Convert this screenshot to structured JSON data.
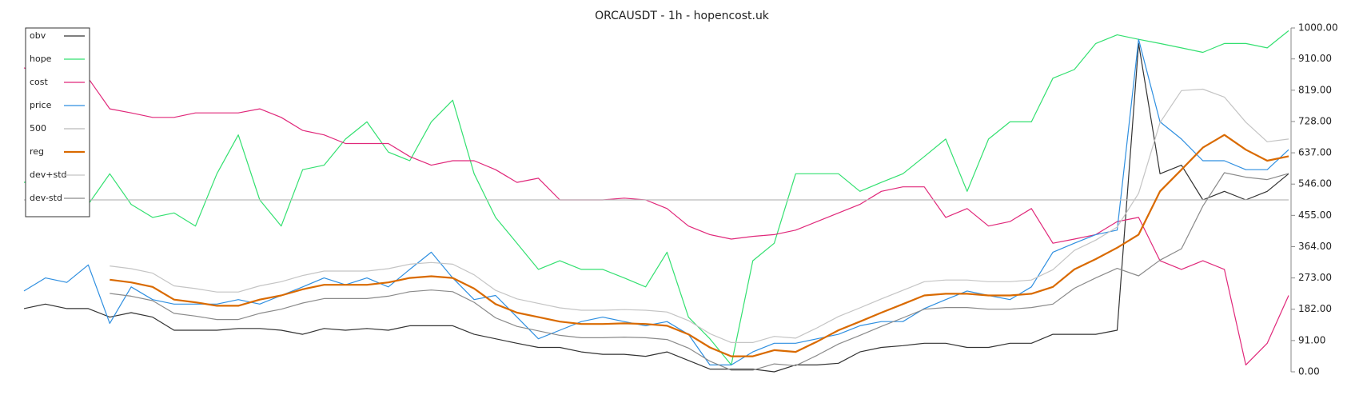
{
  "chart_data": {
    "type": "line",
    "title": "ORCAUSDT - 1h - hopencost.uk",
    "ylim": [
      0,
      1000
    ],
    "yticks": [
      {
        "value": 0,
        "label": "0.00"
      },
      {
        "value": 91,
        "label": "91.00"
      },
      {
        "value": 182,
        "label": "182.00"
      },
      {
        "value": 273,
        "label": "273.00"
      },
      {
        "value": 364,
        "label": "364.00"
      },
      {
        "value": 455,
        "label": "455.00"
      },
      {
        "value": 546,
        "label": "546.00"
      },
      {
        "value": 637,
        "label": "637.00"
      },
      {
        "value": 728,
        "label": "728.00"
      },
      {
        "value": 819,
        "label": "819.00"
      },
      {
        "value": 910,
        "label": "910.00"
      },
      {
        "value": 1000,
        "label": "1000.00"
      }
    ],
    "legend": "top-left",
    "series": [
      {
        "name": "obv",
        "color": "#333333",
        "width": 1.2,
        "values": [
          184,
          197,
          184,
          184,
          159,
          172,
          159,
          121,
          121,
          121,
          126,
          126,
          121,
          109,
          126,
          121,
          126,
          121,
          134,
          134,
          134,
          109,
          96,
          83,
          71,
          71,
          58,
          51,
          51,
          45,
          58,
          33,
          8,
          8,
          8,
          0,
          20,
          20,
          25,
          58,
          71,
          76,
          83,
          83,
          71,
          71,
          83,
          83,
          109,
          109,
          109,
          121,
          955,
          576,
          601,
          500,
          525,
          500,
          525,
          576
        ]
      },
      {
        "name": "hope",
        "color": "#33e070",
        "width": 1.2,
        "values": [
          551,
          563,
          525,
          487,
          576,
          487,
          449,
          462,
          424,
          576,
          689,
          500,
          424,
          588,
          601,
          677,
          727,
          639,
          614,
          727,
          790,
          576,
          449,
          374,
          298,
          323,
          298,
          298,
          273,
          247,
          348,
          159,
          96,
          20,
          323,
          374,
          576,
          576,
          576,
          525,
          551,
          576,
          626,
          677,
          525,
          677,
          727,
          727,
          854,
          879,
          955,
          980,
          967,
          955,
          942,
          929,
          955,
          955,
          942,
          992
        ]
      },
      {
        "name": "cost",
        "color": "#e0287a",
        "width": 1.2,
        "values": [
          884,
          866,
          854,
          854,
          765,
          753,
          740,
          740,
          753,
          753,
          753,
          765,
          740,
          702,
          689,
          664,
          664,
          664,
          626,
          601,
          614,
          614,
          588,
          551,
          563,
          500,
          500,
          500,
          505,
          500,
          475,
          424,
          399,
          386,
          394,
          399,
          412,
          437,
          462,
          487,
          525,
          538,
          538,
          449,
          475,
          424,
          437,
          475,
          374,
          386,
          399,
          437,
          449,
          323,
          298,
          323,
          298,
          20,
          83,
          222
        ]
      },
      {
        "name": "price",
        "color": "#2f8fe0",
        "width": 1.2,
        "values": [
          235,
          273,
          260,
          311,
          141,
          247,
          210,
          197,
          197,
          197,
          210,
          197,
          222,
          247,
          273,
          253,
          273,
          247,
          298,
          348,
          273,
          210,
          222,
          159,
          96,
          121,
          146,
          159,
          146,
          134,
          146,
          109,
          20,
          20,
          58,
          83,
          83,
          96,
          109,
          134,
          146,
          146,
          184,
          210,
          235,
          222,
          210,
          247,
          348,
          374,
          399,
          412,
          967,
          727,
          677,
          614,
          614,
          588,
          588,
          646
        ]
      },
      {
        "name": "500",
        "color": "#bbbbbb",
        "width": 1.2,
        "values": [
          500,
          500,
          500,
          500,
          500,
          500,
          500,
          500,
          500,
          500,
          500,
          500,
          500,
          500,
          500,
          500,
          500,
          500,
          500,
          500,
          500,
          500,
          500,
          500,
          500,
          500,
          500,
          500,
          500,
          500,
          500,
          500,
          500,
          500,
          500,
          500,
          500,
          500,
          500,
          500,
          500,
          500,
          500,
          500,
          500,
          500,
          500,
          500,
          500,
          500,
          500,
          500,
          500,
          500,
          500,
          500,
          500,
          500,
          500,
          500
        ]
      },
      {
        "name": "reg",
        "color": "#d96a00",
        "width": 2.2,
        "values": [
          null,
          null,
          null,
          null,
          268,
          260,
          247,
          210,
          202,
          192,
          192,
          210,
          222,
          240,
          253,
          253,
          253,
          260,
          273,
          278,
          273,
          242,
          197,
          172,
          159,
          146,
          139,
          139,
          141,
          139,
          134,
          109,
          71,
          45,
          45,
          63,
          58,
          88,
          121,
          146,
          172,
          197,
          222,
          227,
          227,
          222,
          222,
          227,
          247,
          298,
          328,
          361,
          399,
          525,
          588,
          652,
          689,
          646,
          614,
          627
        ]
      },
      {
        "name": "dev+std",
        "color": "#c4c4c4",
        "width": 1.2,
        "values": [
          null,
          null,
          null,
          null,
          308,
          300,
          287,
          250,
          242,
          232,
          232,
          250,
          262,
          280,
          293,
          293,
          293,
          300,
          313,
          318,
          313,
          282,
          237,
          212,
          199,
          186,
          179,
          179,
          181,
          179,
          174,
          149,
          111,
          85,
          85,
          103,
          98,
          128,
          161,
          186,
          212,
          237,
          262,
          267,
          267,
          262,
          262,
          267,
          297,
          353,
          383,
          421,
          519,
          725,
          818,
          822,
          799,
          726,
          669,
          677
        ]
      },
      {
        "name": "dev-std",
        "color": "#8a8a8a",
        "width": 1.2,
        "values": [
          null,
          null,
          null,
          null,
          228,
          220,
          207,
          170,
          162,
          152,
          152,
          170,
          182,
          200,
          213,
          213,
          213,
          220,
          233,
          238,
          233,
          202,
          157,
          132,
          119,
          106,
          99,
          99,
          101,
          99,
          94,
          69,
          31,
          5,
          5,
          23,
          18,
          48,
          81,
          106,
          132,
          157,
          182,
          187,
          187,
          182,
          182,
          187,
          197,
          243,
          273,
          301,
          279,
          325,
          358,
          482,
          579,
          566,
          559,
          577
        ]
      }
    ]
  }
}
